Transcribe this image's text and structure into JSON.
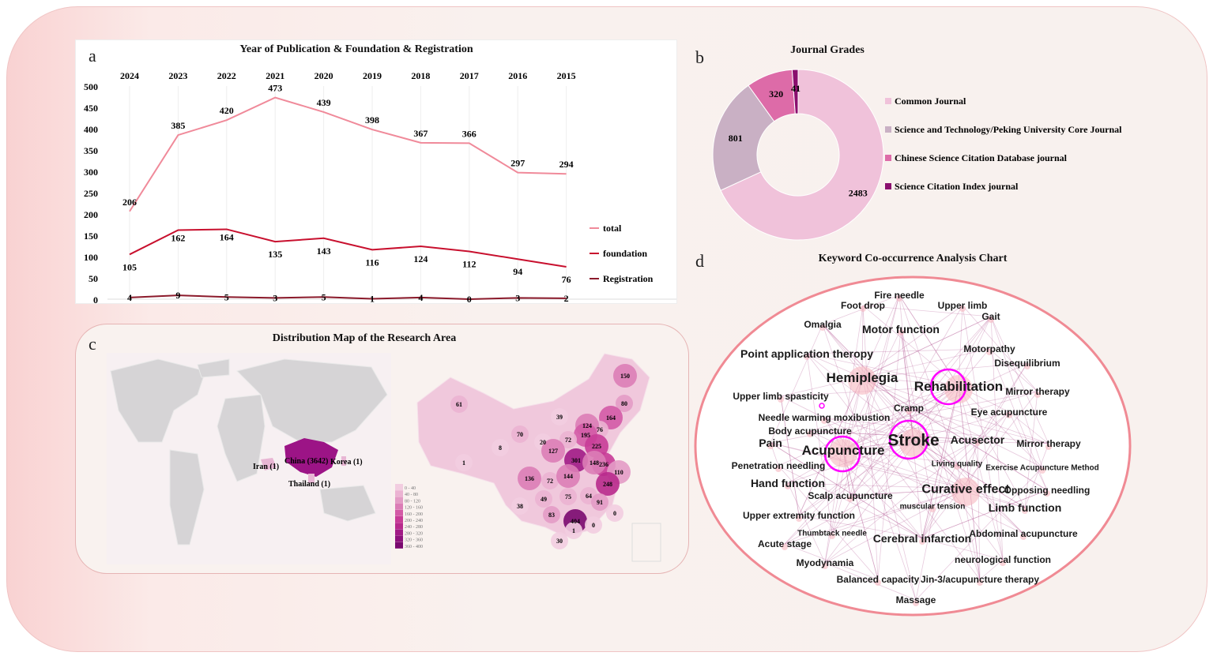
{
  "panels": {
    "a": "a",
    "b": "b",
    "c": "c",
    "d": "d"
  },
  "chart_data": [
    {
      "type": "line",
      "title": "Year of Publication & Foundation & Registration",
      "categories": [
        "2024",
        "2023",
        "2022",
        "2021",
        "2020",
        "2019",
        "2018",
        "2017",
        "2016",
        "2015"
      ],
      "ylim": [
        0,
        500
      ],
      "yticks": [
        0,
        50,
        100,
        150,
        200,
        250,
        300,
        350,
        400,
        450,
        500
      ],
      "grid": "vertical",
      "legend": "right",
      "series": [
        {
          "name": "total",
          "color": "#f08a9a",
          "values": [
            206,
            385,
            420,
            473,
            439,
            398,
            367,
            366,
            297,
            294
          ]
        },
        {
          "name": "foundation",
          "color": "#c8102e",
          "values": [
            105,
            162,
            164,
            135,
            143,
            116,
            124,
            112,
            94,
            76
          ]
        },
        {
          "name": "Registration",
          "color": "#8b1a2b",
          "values": [
            4,
            9,
            5,
            3,
            5,
            1,
            4,
            0,
            3,
            2
          ]
        }
      ]
    },
    {
      "type": "pie",
      "title": "Journal Grades",
      "donut": true,
      "legend": "right",
      "slices": [
        {
          "label": "Common Journal",
          "value": 2483,
          "color": "#f0c2da"
        },
        {
          "label": "Science and Technology/Peking University Core Journal",
          "value": 801,
          "color": "#c9b0c4"
        },
        {
          "label": "Chinese Science Citation Database journal",
          "value": 320,
          "color": "#dd6ba8"
        },
        {
          "label": "Science Citation Index journal",
          "value": 41,
          "color": "#8a0f6e"
        }
      ]
    },
    {
      "type": "map",
      "title": "Distribution Map of the Research Area",
      "countries": [
        {
          "label": "China (3642)",
          "color": "#9c1486"
        },
        {
          "label": "Iran (1)",
          "color": "#e8b6d4"
        },
        {
          "label": "Korea (1)",
          "color": "#e8b6d4"
        },
        {
          "label": "Thailand (1)",
          "color": "#e8b6d4"
        }
      ],
      "legend": "bottom-left",
      "legend_bins": [
        {
          "label": "0 - 40",
          "color": "#f2cde0"
        },
        {
          "label": "40 - 80",
          "color": "#ebb3d2"
        },
        {
          "label": "80 - 120",
          "color": "#e39bc5"
        },
        {
          "label": "120 - 160",
          "color": "#db7db6"
        },
        {
          "label": "160 - 200",
          "color": "#d35aa6"
        },
        {
          "label": "200 - 240",
          "color": "#c83c97"
        },
        {
          "label": "240 - 280",
          "color": "#b82a8c"
        },
        {
          "label": "280 - 320",
          "color": "#a11b86"
        },
        {
          "label": "320 - 360",
          "color": "#8d117c"
        },
        {
          "label": "360 - 400",
          "color": "#7a096f"
        }
      ],
      "province_values": [
        150,
        80,
        164,
        76,
        124,
        195,
        39,
        61,
        70,
        20,
        72,
        225,
        8,
        127,
        301,
        236,
        110,
        148,
        1,
        136,
        72,
        144,
        248,
        49,
        75,
        64,
        91,
        38,
        83,
        404,
        0,
        0,
        1,
        30
      ]
    },
    {
      "type": "network",
      "title": "Keyword Co-occurrence Analysis Chart",
      "keywords": [
        "Fire needle",
        "Foot drop",
        "Upper limb",
        "Gait",
        "Omalgia",
        "Motor function",
        "Point application theropy",
        "Motorpathy",
        "Disequilibrium",
        "Hemiplegia",
        "Rehabilitation",
        "Mirror therapy",
        "Upper limb spasticity",
        "Cramp",
        "Eye acupuncture",
        "Needle warming moxibustion",
        "Body acupuncture",
        "Stroke",
        "Acusector",
        "Pain",
        "Mirror therapy",
        "Acupuncture",
        "Living quality",
        "Exercise Acupuncture Method",
        "Penetration needling",
        "Hand function",
        "Curative effect",
        "Opposing needling",
        "Scalp acupuncture",
        "muscular tension",
        "Limb function",
        "Upper extremity function",
        "Thumbtack needle",
        "Abdominal acupuncture",
        "Cerebral infarction",
        "Acute stage",
        "Myodynamia",
        "neurological function",
        "Balanced capacity",
        "Jin-3/acupuncture therapy",
        "Massage"
      ],
      "edge_color": "#b0508f",
      "highlight_color": "#ff00ff"
    }
  ]
}
